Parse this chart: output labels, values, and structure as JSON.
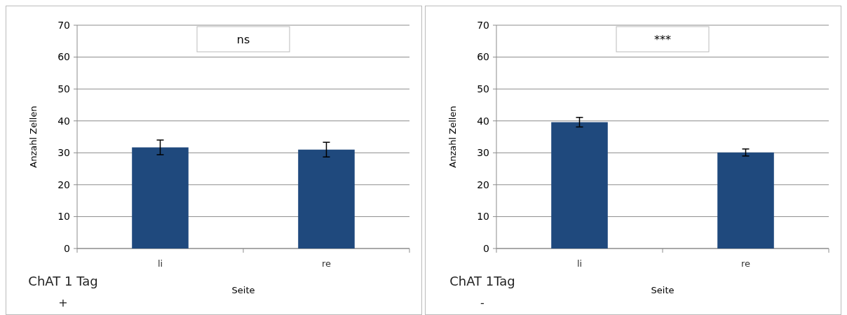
{
  "chart_data": [
    {
      "type": "bar",
      "categories": [
        "li",
        "re"
      ],
      "values": [
        31.7,
        31.0
      ],
      "errors": [
        2.3,
        2.3
      ],
      "color": "#1f497d",
      "xlabel": "Seite",
      "ylabel": "Anzahl Zellen",
      "ylim": [
        0,
        70
      ],
      "yticks": [
        0,
        10,
        20,
        30,
        40,
        50,
        60,
        70
      ],
      "grid": "y",
      "annotations": [
        "ns",
        "ChAT 1 Tag",
        "+"
      ]
    },
    {
      "type": "bar",
      "categories": [
        "li",
        "re"
      ],
      "values": [
        39.6,
        30.1
      ],
      "errors": [
        1.5,
        1.1
      ],
      "color": "#1f497d",
      "xlabel": "Seite",
      "ylabel": "Anzahl Zellen",
      "ylim": [
        0,
        70
      ],
      "yticks": [
        0,
        10,
        20,
        30,
        40,
        50,
        60,
        70
      ],
      "grid": "y",
      "annotations": [
        "***",
        "ChAT 1Tag",
        "-"
      ]
    }
  ]
}
